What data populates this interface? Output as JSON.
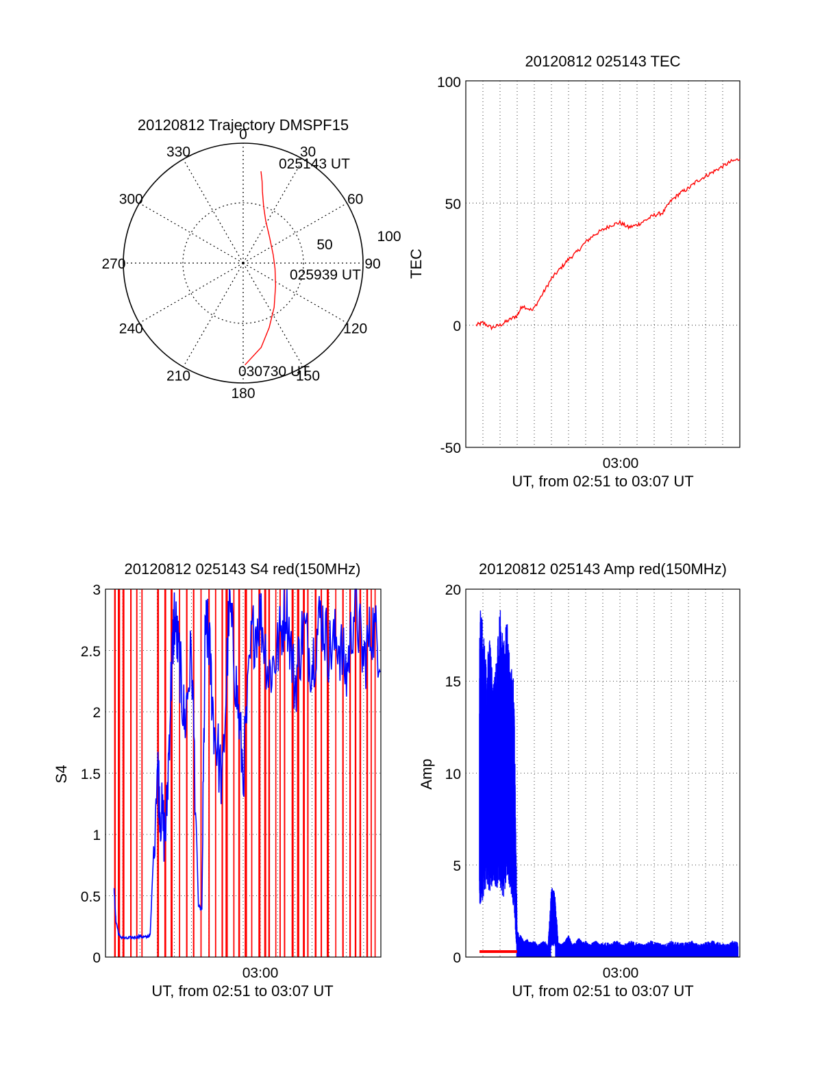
{
  "colors": {
    "red": "#ff0000",
    "blue": "#0000ff",
    "axis": "#000000",
    "grid": "#000000"
  },
  "chart_data": [
    {
      "type": "polar-trajectory",
      "title": "20120812 Trajectory DMSPF15",
      "azimuth_labels": [
        "0",
        "30",
        "60",
        "90",
        "120",
        "150",
        "180",
        "210",
        "240",
        "270",
        "300",
        "330"
      ],
      "radial_labels": [
        "50",
        "100"
      ],
      "radial_max": 100,
      "track": [
        {
          "az": 11,
          "r": 78
        },
        {
          "az": 13,
          "r": 70
        },
        {
          "az": 15,
          "r": 62
        },
        {
          "az": 20,
          "r": 50
        },
        {
          "az": 28,
          "r": 40
        },
        {
          "az": 45,
          "r": 31
        },
        {
          "az": 75,
          "r": 26
        },
        {
          "az": 100,
          "r": 27
        },
        {
          "az": 125,
          "r": 33
        },
        {
          "az": 145,
          "r": 45
        },
        {
          "az": 158,
          "r": 58
        },
        {
          "az": 168,
          "r": 72
        },
        {
          "az": 179,
          "r": 85
        }
      ],
      "track_labels": [
        "025143 UT",
        "025939 UT",
        "030730 UT"
      ],
      "grid": true
    },
    {
      "type": "line",
      "title": "20120812 025143 TEC",
      "ylabel": "TEC",
      "xlabel": "UT, from 02:51 to 03:07 UT",
      "xlim": [
        0,
        16
      ],
      "ylim": [
        -50,
        100
      ],
      "yticks": [
        "100",
        "50",
        "0",
        "-50"
      ],
      "xtick_label": "03:00",
      "grid": true,
      "series": [
        {
          "color": "red",
          "x": [
            0.6,
            1.0,
            1.5,
            2.0,
            2.5,
            3.0,
            3.3,
            3.9,
            4.5,
            5.0,
            5.5,
            6.0,
            6.5,
            7.0,
            7.5,
            8.0,
            8.5,
            9.0,
            9.5,
            10.0,
            10.5,
            11.0,
            11.5,
            12.0,
            12.5,
            13.0,
            13.5,
            14.0,
            14.5,
            15.0,
            15.5,
            16.0
          ],
          "y": [
            0,
            1,
            -1,
            0,
            2,
            4,
            8,
            6,
            13,
            19,
            23,
            27,
            30,
            34,
            37,
            39,
            41,
            42,
            40,
            41,
            43,
            45,
            46,
            51,
            54,
            56,
            59,
            61,
            63,
            65,
            67,
            68
          ]
        }
      ]
    },
    {
      "type": "line",
      "title": "20120812 025143 S4 red(150MHz)",
      "ylabel": "S4",
      "xlabel": "UT, from 02:51 to 03:07 UT",
      "xlim": [
        0,
        16
      ],
      "ylim": [
        0,
        3
      ],
      "yticks": [
        "3",
        "2.5",
        "2",
        "1.5",
        "1",
        "0.5",
        "0"
      ],
      "xtick_label": "03:00",
      "grid": true,
      "series": [
        {
          "color": "blue",
          "x": [
            0.5,
            0.6,
            0.8,
            1.2,
            1.6,
            2.0,
            2.3,
            2.6,
            3.0,
            3.2,
            3.5,
            3.8,
            4.0,
            4.3,
            4.6,
            5.0,
            5.4,
            5.6,
            5.8,
            6.0,
            6.3,
            6.8,
            7.2,
            7.6,
            8.0,
            8.5,
            9.0,
            9.5,
            10.0,
            10.5,
            11.0,
            11.5,
            12.0,
            12.5,
            13.0,
            13.5,
            14.0,
            14.5,
            15.0,
            15.5,
            16.0
          ],
          "y": [
            0.55,
            0.3,
            0.17,
            0.15,
            0.16,
            0.17,
            0.16,
            0.18,
            1.6,
            1.2,
            0.95,
            2.2,
            2.8,
            2.4,
            1.9,
            2.5,
            0.42,
            0.38,
            2.7,
            2.6,
            1.9,
            1.4,
            2.9,
            2.2,
            1.5,
            2.6,
            2.8,
            2.3,
            2.5,
            2.9,
            2.2,
            2.7,
            2.4,
            2.8,
            2.5,
            2.6,
            2.3,
            2.9,
            2.4,
            2.7,
            2.5
          ]
        }
      ]
    },
    {
      "type": "bar",
      "title": "20120812 025143 Amp red(150MHz)",
      "ylabel": "Amp",
      "xlabel": "UT, from 02:51 to 03:07 UT",
      "xlim": [
        0,
        16
      ],
      "ylim": [
        0,
        20
      ],
      "yticks": [
        "20",
        "15",
        "10",
        "5",
        "0"
      ],
      "xtick_label": "03:00",
      "grid": true,
      "series": [
        {
          "color": "blue",
          "x": [
            0.8,
            1.0,
            1.2,
            1.4,
            1.6,
            1.8,
            2.0,
            2.2,
            2.4,
            2.6,
            2.8,
            3.0,
            3.2,
            3.4,
            3.6,
            3.8,
            4.0,
            4.2,
            4.4,
            4.6,
            4.8,
            5.0,
            5.2,
            5.4,
            5.6,
            5.8,
            6.0,
            6.2,
            6.4,
            6.6,
            6.8,
            7.0,
            7.2,
            7.4,
            7.6,
            7.8,
            8.0,
            8.4,
            8.8,
            9.2,
            9.6,
            10.0,
            10.4,
            10.8,
            11.2,
            11.6,
            12.0,
            12.4,
            12.8,
            13.2,
            13.6,
            14.0,
            14.4,
            14.8,
            15.2,
            15.6,
            15.9
          ],
          "high": [
            19.0,
            18.5,
            16.0,
            17.5,
            15.0,
            16.5,
            19.0,
            17.0,
            18.5,
            16.0,
            15.5,
            1.5,
            1.2,
            0.9,
            1.0,
            0.8,
            0.9,
            0.7,
            0.8,
            0.9,
            0.6,
            3.8,
            3.6,
            0.8,
            0.7,
            0.9,
            1.2,
            0.7,
            0.8,
            1.1,
            0.8,
            0.9,
            0.7,
            0.8,
            0.9,
            0.7,
            0.8,
            0.8,
            0.9,
            0.7,
            0.9,
            0.8,
            0.7,
            0.9,
            0.8,
            0.7,
            0.9,
            0.8,
            0.8,
            0.9,
            0.7,
            0.8,
            0.9,
            0.8,
            0.7,
            0.9,
            0.8
          ],
          "low": [
            4.5,
            5.0,
            6.5,
            5.5,
            7.0,
            6.0,
            6.5,
            5.0,
            7.5,
            6.0,
            4.5,
            0.1,
            0.1,
            0.1,
            0.1,
            0.1,
            0.1,
            0.1,
            0.1,
            0.1,
            0.1,
            1.0,
            1.0,
            0.1,
            0.1,
            0.1,
            0.1,
            0.1,
            0.1,
            0.1,
            0.1,
            0.1,
            0.1,
            0.1,
            0.1,
            0.1,
            0.1,
            0.1,
            0.1,
            0.1,
            0.1,
            0.1,
            0.1,
            0.1,
            0.1,
            0.1,
            0.1,
            0.1,
            0.1,
            0.1,
            0.1,
            0.1,
            0.1,
            0.1,
            0.1,
            0.1,
            0.1
          ]
        },
        {
          "color": "red",
          "x_start": 0.8,
          "x_end": 3.0,
          "level": 0.3
        }
      ]
    }
  ]
}
